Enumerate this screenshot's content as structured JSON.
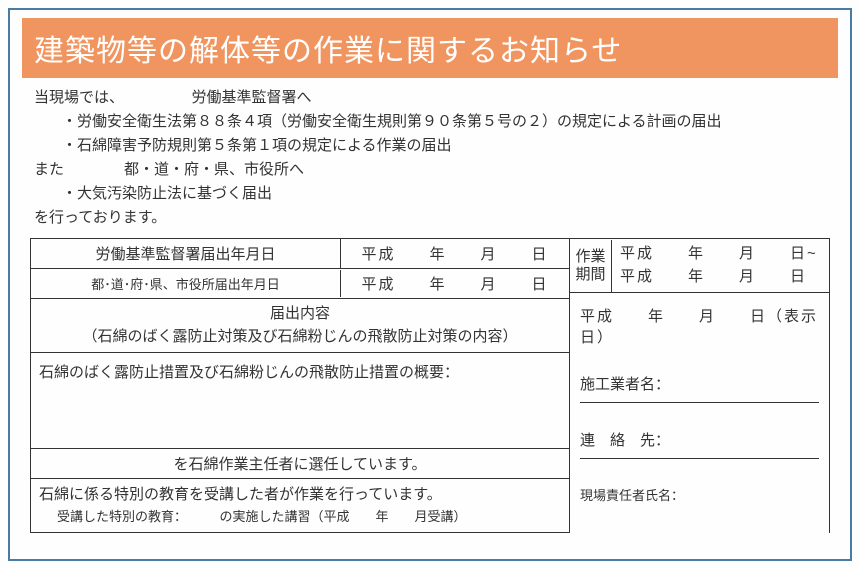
{
  "title": "建築物等の解体等の作業に関するお知らせ",
  "intro": {
    "line1": "当現場では、　　　　　労働基準監督署へ",
    "line2": "・労働安全衛生法第８８条４項（労働安全衛生規則第９０条第５号の２）の規定による計画の届出",
    "line3": "・石綿障害予防規則第５条第１項の規定による作業の届出",
    "line4": "また　　　　都・道・府・県、市役所へ",
    "line5": "・大気汚染防止法に基づく届出",
    "line6": "を行っております。"
  },
  "dates": {
    "row1_label": "労働基準監督署届出年月日",
    "row1_value": "平成　　年　　月　　日",
    "row2_label": "都･道･府･県、市役所届出年月日",
    "row2_value": "平成　　年　　月　　日"
  },
  "content_header": {
    "line1": "届出内容",
    "line2": "（石綿のばく露防止対策及び石綿粉じんの飛散防止対策の内容）"
  },
  "content_body": "石綿のばく露防止措置及び石綿粉じんの飛散防止措置の概要：",
  "selection": "を石綿作業主任者に選任しています。",
  "education": {
    "line1": "石綿に係る特別の教育を受講した者が作業を行っています。",
    "line2": "受講した特別の教育：　　　の実施した講習（平成　　年　　月受講）"
  },
  "period": {
    "header": "作業期間",
    "from": "平成　　年　　月　　日~",
    "to": "平成　　年　　月　　日"
  },
  "display_date": "平成　　年　　月　　日（表示日）",
  "contractor_label": "施工業者名：",
  "contact_label": "連　絡　先：",
  "supervisor_label": "現場責任者氏名：",
  "colors": {
    "border": "#4a7ba6",
    "title_bg": "#f0955f",
    "title_text": "#ffffff",
    "text": "#333333"
  }
}
